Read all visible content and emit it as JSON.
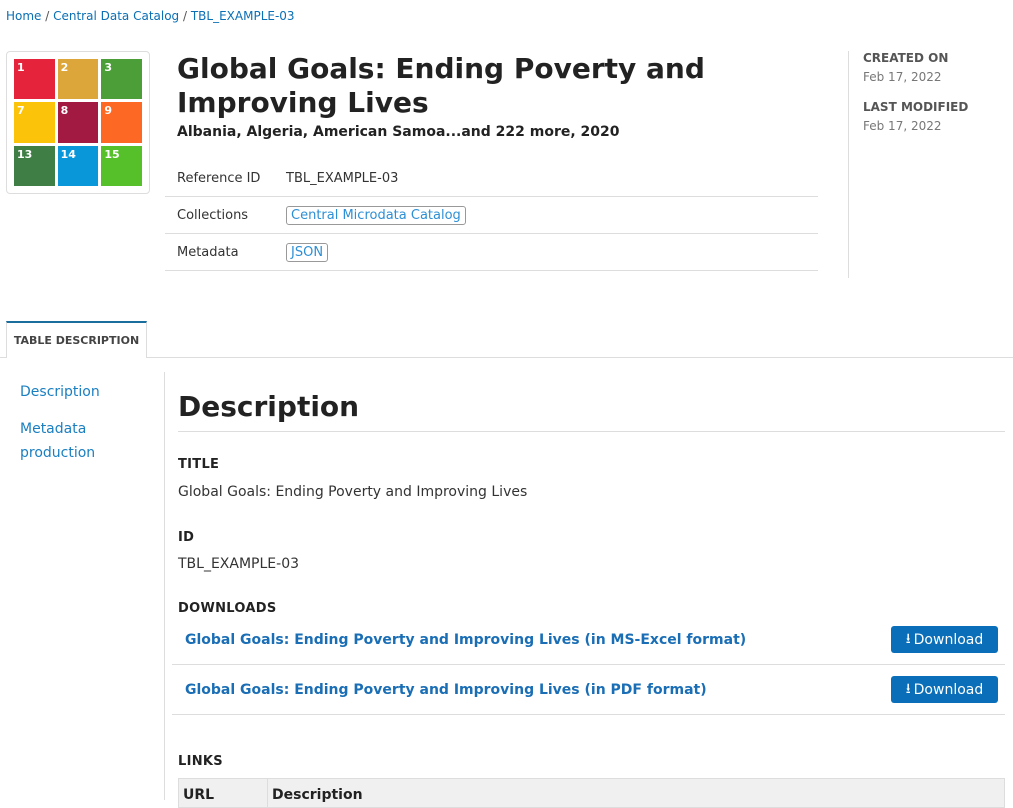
{
  "breadcrumb": [
    "Home",
    "Central Data Catalog",
    "TBL_EXAMPLE-03"
  ],
  "logo": {
    "tiles": [
      {
        "n": "1",
        "c": "#e5243b"
      },
      {
        "n": "2",
        "c": "#dda63a"
      },
      {
        "n": "3",
        "c": "#4c9f38"
      },
      {
        "n": "7",
        "c": "#fcc30b"
      },
      {
        "n": "8",
        "c": "#a21942"
      },
      {
        "n": "9",
        "c": "#fd6925"
      },
      {
        "n": "13",
        "c": "#3f7e44"
      },
      {
        "n": "14",
        "c": "#0a97d9"
      },
      {
        "n": "15",
        "c": "#56c02b"
      }
    ]
  },
  "header": {
    "title": "Global Goals: Ending Poverty and Improving Lives",
    "subtitle": "Albania, Algeria, American Samoa...and 222 more, 2020"
  },
  "meta": {
    "reference_label": "Reference ID",
    "reference_value": "TBL_EXAMPLE-03",
    "collections_label": "Collections",
    "collections_value": "Central Microdata Catalog",
    "metadata_label": "Metadata",
    "metadata_value": "JSON"
  },
  "side": {
    "created_label": "CREATED ON",
    "created_value": "Feb 17, 2022",
    "modified_label": "LAST MODIFIED",
    "modified_value": "Feb 17, 2022"
  },
  "tab": "TABLE DESCRIPTION",
  "nav": [
    "Description",
    "Metadata production"
  ],
  "main": {
    "heading": "Description",
    "title_label": "TITLE",
    "title_value": "Global Goals: Ending Poverty and Improving Lives",
    "id_label": "ID",
    "id_value": "TBL_EXAMPLE-03",
    "downloads_label": "DOWNLOADS",
    "downloads": [
      {
        "name": "Global Goals: Ending Poverty and Improving Lives (in MS-Excel format)",
        "button": "Download"
      },
      {
        "name": "Global Goals: Ending Poverty and Improving Lives (in PDF format)",
        "button": "Download"
      }
    ],
    "links_label": "LINKS",
    "links_columns": [
      "URL",
      "Description"
    ]
  }
}
